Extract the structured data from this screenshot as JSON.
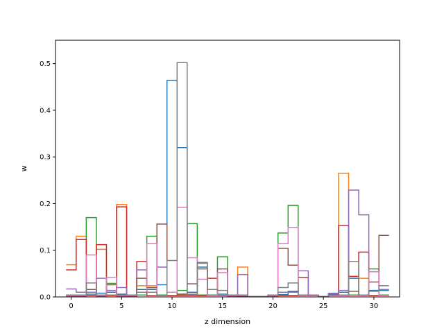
{
  "chart_data": {
    "type": "step",
    "xlabel": "z dimension",
    "ylabel": "w",
    "xlim": [
      -1.55,
      32.55
    ],
    "ylim": [
      0,
      0.55
    ],
    "xticks": [
      0,
      5,
      10,
      15,
      20,
      25,
      30
    ],
    "yticks": [
      0.0,
      0.1,
      0.2,
      0.3,
      0.4,
      0.5
    ],
    "ytick_labels": [
      "0.0",
      "0.1",
      "0.2",
      "0.3",
      "0.4",
      "0.5"
    ],
    "grid": false,
    "legend": false,
    "x": [
      0,
      1,
      2,
      3,
      4,
      5,
      6,
      7,
      8,
      9,
      10,
      11,
      12,
      13,
      14,
      15,
      16,
      17,
      18,
      19,
      20,
      21,
      22,
      23,
      24,
      25,
      26,
      27,
      28,
      29,
      30,
      31
    ],
    "series": [
      {
        "color": "#1f77b4",
        "values": [
          0.003,
          0.004,
          0.006,
          0.008,
          0.01,
          0.006,
          0.003,
          0.016,
          0.016,
          0.026,
          0.464,
          0.32,
          0.01,
          0.064,
          0.004,
          0.006,
          0.002,
          0.001,
          0.001,
          0.001,
          0.002,
          0.005,
          0.012,
          0.004,
          0.003,
          0.001,
          0.006,
          0.01,
          0.04,
          0.004,
          0.014,
          0.014
        ]
      },
      {
        "color": "#ff7f0e",
        "values": [
          0.069,
          0.13,
          0.003,
          0.102,
          0.003,
          0.198,
          0.003,
          0.024,
          0.024,
          0.003,
          0.003,
          0.005,
          0.003,
          0.003,
          0.003,
          0.003,
          0.003,
          0.064,
          0.001,
          0.001,
          0.003,
          0.003,
          0.003,
          0.003,
          0.003,
          0.001,
          0.003,
          0.265,
          0.003,
          0.04,
          0.003,
          0.003
        ]
      },
      {
        "color": "#2ca02c",
        "values": [
          0.003,
          0.004,
          0.17,
          0.004,
          0.029,
          0.004,
          0.004,
          0.004,
          0.13,
          0.004,
          0.01,
          0.014,
          0.157,
          0.004,
          0.004,
          0.086,
          0.004,
          0.004,
          0.001,
          0.001,
          0.004,
          0.137,
          0.196,
          0.004,
          0.004,
          0.001,
          0.004,
          0.004,
          0.004,
          0.004,
          0.06,
          0.004
        ]
      },
      {
        "color": "#d62728",
        "values": [
          0.058,
          0.123,
          0.003,
          0.112,
          0.003,
          0.193,
          0.003,
          0.076,
          0.003,
          0.003,
          0.003,
          0.003,
          0.003,
          0.003,
          0.04,
          0.003,
          0.003,
          0.003,
          0.001,
          0.001,
          0.003,
          0.003,
          0.003,
          0.042,
          0.003,
          0.001,
          0.003,
          0.153,
          0.044,
          0.096,
          0.003,
          0.003
        ]
      },
      {
        "color": "#9467bd",
        "values": [
          0.017,
          0.01,
          0.01,
          0.04,
          0.014,
          0.02,
          0.003,
          0.058,
          0.02,
          0.064,
          0.01,
          0.006,
          0.006,
          0.072,
          0.003,
          0.003,
          0.003,
          0.048,
          0.001,
          0.001,
          0.003,
          0.01,
          0.01,
          0.056,
          0.003,
          0.001,
          0.008,
          0.014,
          0.229,
          0.176,
          0.054,
          0.016
        ]
      },
      {
        "color": "#8c564b",
        "values": [
          0.002,
          0.002,
          0.016,
          0.002,
          0.026,
          0.002,
          0.002,
          0.04,
          0.02,
          0.156,
          0.01,
          0.006,
          0.028,
          0.06,
          0.003,
          0.06,
          0.003,
          0.003,
          0.001,
          0.001,
          0.003,
          0.104,
          0.068,
          0.003,
          0.003,
          0.001,
          0.003,
          0.003,
          0.012,
          0.003,
          0.032,
          0.132
        ]
      },
      {
        "color": "#e377c2",
        "values": [
          0.003,
          0.003,
          0.09,
          0.003,
          0.042,
          0.003,
          0.003,
          0.01,
          0.114,
          0.003,
          0.01,
          0.192,
          0.084,
          0.038,
          0.003,
          0.052,
          0.003,
          0.003,
          0.001,
          0.001,
          0.003,
          0.114,
          0.149,
          0.003,
          0.003,
          0.001,
          0.003,
          0.003,
          0.003,
          0.003,
          0.054,
          0.003
        ]
      },
      {
        "color": "#7f7f7f",
        "values": [
          0.004,
          0.004,
          0.03,
          0.004,
          0.004,
          0.004,
          0.004,
          0.01,
          0.01,
          0.003,
          0.078,
          0.502,
          0.004,
          0.074,
          0.016,
          0.014,
          0.004,
          0.004,
          0.001,
          0.001,
          0.004,
          0.02,
          0.03,
          0.004,
          0.004,
          0.001,
          0.004,
          0.004,
          0.076,
          0.004,
          0.012,
          0.024
        ]
      }
    ]
  }
}
